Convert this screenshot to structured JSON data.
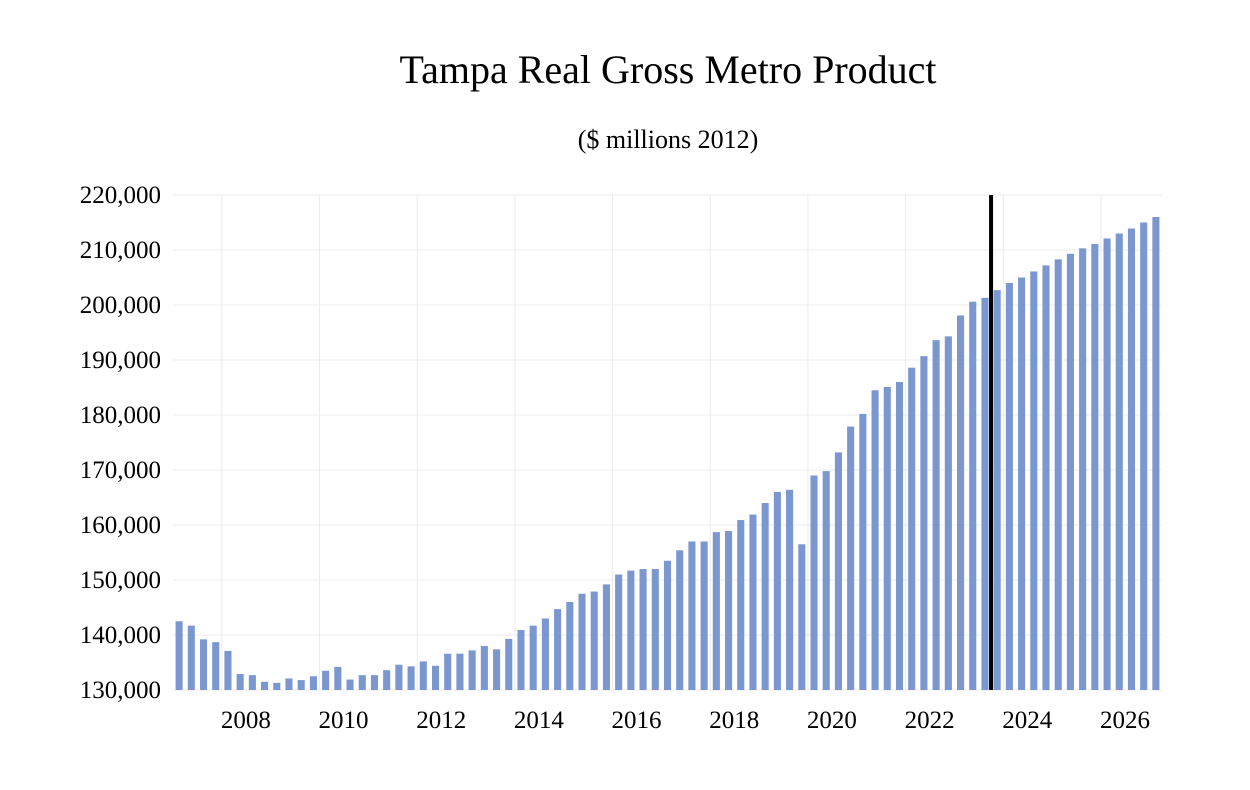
{
  "chart_data": {
    "type": "bar",
    "title": "Tampa Real Gross Metro Product",
    "subtitle": "($ millions 2012)",
    "xlabel": "",
    "ylabel": "",
    "ylim": [
      130000,
      220000
    ],
    "yticks": [
      "130,000",
      "140,000",
      "150,000",
      "160,000",
      "170,000",
      "180,000",
      "190,000",
      "200,000",
      "210,000",
      "220,000"
    ],
    "ytick_values": [
      130000,
      140000,
      150000,
      160000,
      170000,
      180000,
      190000,
      200000,
      210000,
      220000
    ],
    "xticks": [
      "2008",
      "2010",
      "2012",
      "2014",
      "2016",
      "2018",
      "2020",
      "2022",
      "2024",
      "2026"
    ],
    "xtick_years": [
      2008,
      2010,
      2012,
      2014,
      2016,
      2018,
      2020,
      2022,
      2024,
      2026
    ],
    "grid": true,
    "bar_color": "#7b97cf",
    "marker_line": {
      "year": 2023.75,
      "color": "#000000"
    },
    "categories": [
      "2007Q1",
      "2007Q2",
      "2007Q3",
      "2007Q4",
      "2008Q1",
      "2008Q2",
      "2008Q3",
      "2008Q4",
      "2009Q1",
      "2009Q2",
      "2009Q3",
      "2009Q4",
      "2010Q1",
      "2010Q2",
      "2010Q3",
      "2010Q4",
      "2011Q1",
      "2011Q2",
      "2011Q3",
      "2011Q4",
      "2012Q1",
      "2012Q2",
      "2012Q3",
      "2012Q4",
      "2013Q1",
      "2013Q2",
      "2013Q3",
      "2013Q4",
      "2014Q1",
      "2014Q2",
      "2014Q3",
      "2014Q4",
      "2015Q1",
      "2015Q2",
      "2015Q3",
      "2015Q4",
      "2016Q1",
      "2016Q2",
      "2016Q3",
      "2016Q4",
      "2017Q1",
      "2017Q2",
      "2017Q3",
      "2017Q4",
      "2018Q1",
      "2018Q2",
      "2018Q3",
      "2018Q4",
      "2019Q1",
      "2019Q2",
      "2019Q3",
      "2019Q4",
      "2020Q1",
      "2020Q2",
      "2020Q3",
      "2020Q4",
      "2021Q1",
      "2021Q2",
      "2021Q3",
      "2021Q4",
      "2022Q1",
      "2022Q2",
      "2022Q3",
      "2022Q4",
      "2023Q1",
      "2023Q2",
      "2023Q3",
      "2023Q4",
      "2024Q1",
      "2024Q2",
      "2024Q3",
      "2024Q4",
      "2025Q1",
      "2025Q2",
      "2025Q3",
      "2025Q4",
      "2026Q1",
      "2026Q2",
      "2026Q3",
      "2026Q4",
      "2027Q1"
    ],
    "values": [
      142500,
      141700,
      139200,
      138700,
      137100,
      132900,
      132700,
      131500,
      131300,
      132100,
      131800,
      132500,
      133500,
      134200,
      131900,
      132700,
      132700,
      133600,
      134600,
      134300,
      135200,
      134400,
      136600,
      136600,
      137200,
      138000,
      137400,
      139300,
      140900,
      141700,
      143000,
      144700,
      146000,
      147500,
      147900,
      149200,
      151000,
      151700,
      152000,
      152000,
      153500,
      155400,
      157000,
      157000,
      158700,
      158900,
      160900,
      161900,
      164000,
      166000,
      166400,
      156500,
      169000,
      169800,
      173200,
      177900,
      180200,
      184500,
      185100,
      186000,
      188600,
      190700,
      193600,
      194300,
      198100,
      200600,
      201300,
      202700,
      204000,
      205000,
      206100,
      207200,
      208300,
      209300,
      210300,
      211100,
      212100,
      213000,
      213900,
      215000,
      216000
    ]
  }
}
